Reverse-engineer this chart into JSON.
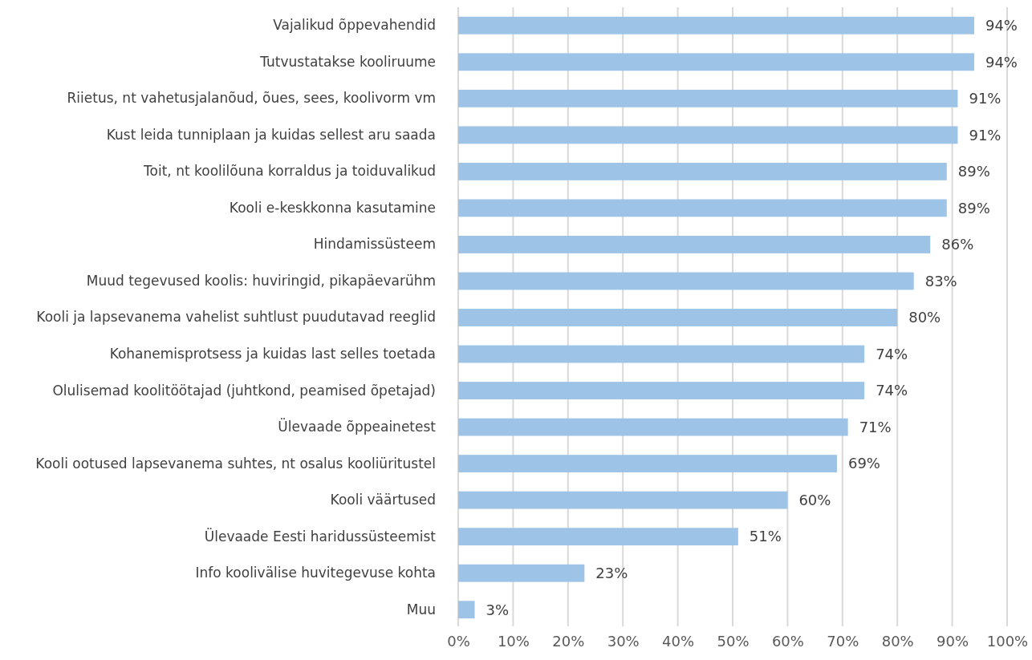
{
  "chart_data": {
    "type": "bar",
    "orientation": "horizontal",
    "categories": [
      "Vajalikud õppevahendid",
      "Tutvustatakse kooliruume",
      "Riietus, nt vahetusjalanõud, õues, sees, koolivorm vm",
      "Kust leida tunniplaan ja kuidas sellest aru saada",
      "Toit, nt koolilõuna korraldus ja toiduvalikud",
      "Kooli e-keskkonna kasutamine",
      "Hindamissüsteem",
      "Muud tegevused koolis: huviringid, pikapäevarühm",
      "Kooli ja lapsevanema vahelist suhtlust puudutavad reeglid",
      "Kohanemisprotsess ja kuidas last selles toetada",
      "Olulisemad koolitöötajad (juhtkond, peamised õpetajad)",
      "Ülevaade õppeainetest",
      "Kooli ootused lapsevanema suhtes, nt osalus kooliüritustel",
      "Kooli väärtused",
      "Ülevaade Eesti haridussüsteemist",
      "Info koolivälise huvitegevuse kohta",
      "Muu"
    ],
    "values": [
      94,
      94,
      91,
      91,
      89,
      89,
      86,
      83,
      80,
      74,
      74,
      71,
      69,
      60,
      51,
      23,
      3
    ],
    "value_labels": [
      "94%",
      "94%",
      "91%",
      "91%",
      "89%",
      "89%",
      "86%",
      "83%",
      "80%",
      "74%",
      "74%",
      "71%",
      "69%",
      "60%",
      "51%",
      "23%",
      "3%"
    ],
    "color": "#9dc3e6",
    "xlim": [
      0,
      100
    ],
    "xticks": [
      {
        "value": 0,
        "label": "0%"
      },
      {
        "value": 10,
        "label": "10%"
      },
      {
        "value": 20,
        "label": "20%"
      },
      {
        "value": 30,
        "label": "30%"
      },
      {
        "value": 40,
        "label": "40%"
      },
      {
        "value": 50,
        "label": "50%"
      },
      {
        "value": 60,
        "label": "60%"
      },
      {
        "value": 70,
        "label": "70%"
      },
      {
        "value": 80,
        "label": "80%"
      },
      {
        "value": 90,
        "label": "90%"
      },
      {
        "value": 100,
        "label": "100%"
      }
    ],
    "grid": "x"
  }
}
